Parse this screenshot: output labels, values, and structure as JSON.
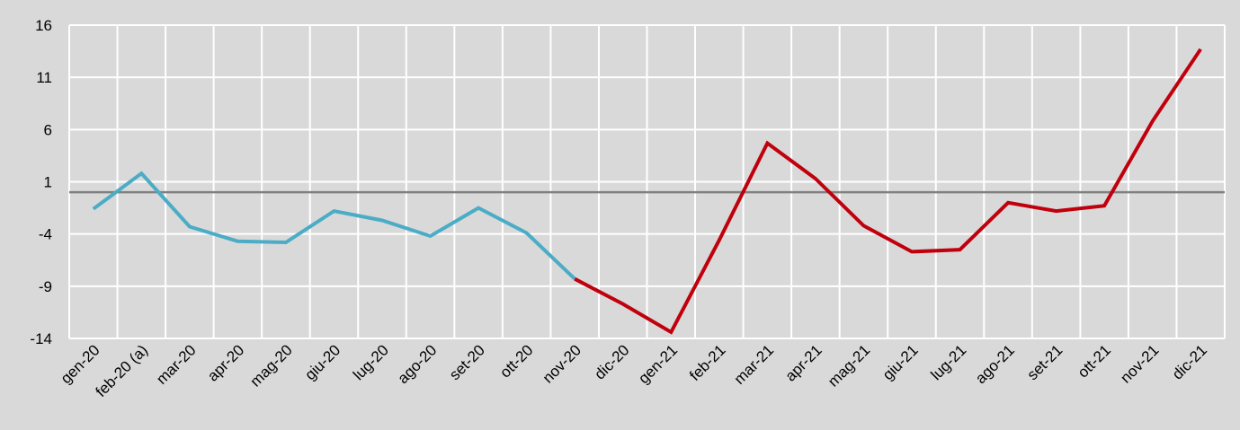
{
  "chart_data": {
    "type": "line",
    "categories": [
      "gen-20",
      "feb-20 (a)",
      "mar-20",
      "apr-20",
      "mag-20",
      "giu-20",
      "lug-20",
      "ago-20",
      "set-20",
      "ott-20",
      "nov-20",
      "dic-20",
      "gen-21",
      "feb-21",
      "mar-21",
      "apr-21",
      "mag-21",
      "giu-21",
      "lug-21",
      "ago-21",
      "set-21",
      "ott-21",
      "nov-21",
      "dic-21"
    ],
    "series": [
      {
        "color": "#4bacc6",
        "values": [
          -1.6,
          1.8,
          -3.3,
          -4.7,
          -4.8,
          -1.8,
          -2.7,
          -4.2,
          -1.5,
          -3.9,
          -8.3,
          null,
          null,
          null,
          null,
          null,
          null,
          null,
          null,
          null,
          null,
          null,
          null,
          null
        ]
      },
      {
        "color": "#c0000c",
        "values": [
          null,
          null,
          null,
          null,
          null,
          null,
          null,
          null,
          null,
          null,
          -8.3,
          -10.7,
          -13.4,
          -4.6,
          4.7,
          1.3,
          -3.2,
          -5.7,
          -5.5,
          -1.0,
          -1.8,
          -1.3,
          6.8,
          13.7
        ]
      }
    ],
    "yticks": [
      16,
      11,
      6,
      1,
      -4,
      -9,
      -14
    ],
    "ylim": [
      -14,
      16
    ],
    "zero_line": 0,
    "grid": true
  }
}
